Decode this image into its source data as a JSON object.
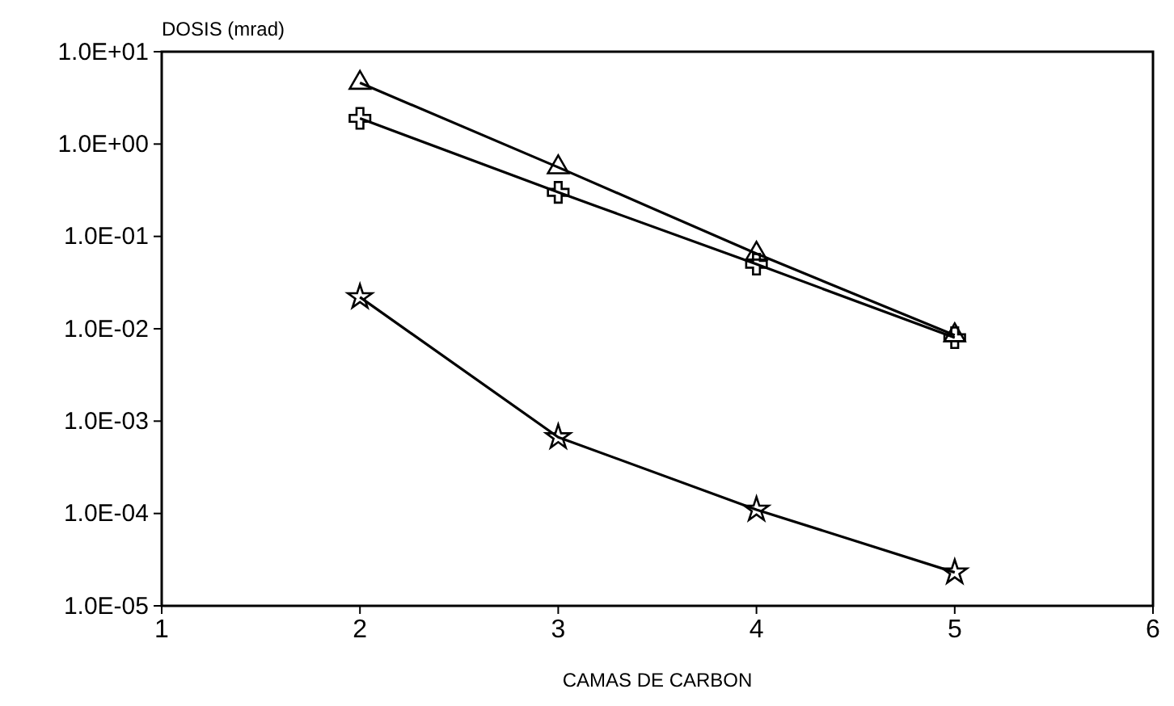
{
  "chart_data": {
    "type": "line",
    "ylabel": "DOSIS (mrad)",
    "xlabel": "CAMAS DE CARBON",
    "log": "y",
    "xlim": [
      1,
      6
    ],
    "xticks": [
      1,
      2,
      3,
      4,
      5,
      6
    ],
    "ylim": [
      1e-05,
      10
    ],
    "yticks": [
      {
        "value": 10,
        "label": "1.0E+01"
      },
      {
        "value": 1,
        "label": "1.0E+00"
      },
      {
        "value": 0.1,
        "label": "1.0E-01"
      },
      {
        "value": 0.01,
        "label": "1.0E-02"
      },
      {
        "value": 0.001,
        "label": "1.0E-03"
      },
      {
        "value": 0.0001,
        "label": "1.0E-04"
      },
      {
        "value": 1e-05,
        "label": "1.0E-05"
      }
    ],
    "grid": false,
    "line_style": "solid",
    "series": [
      {
        "x": [
          2,
          3,
          4,
          5
        ],
        "values": [
          4.6,
          0.56,
          0.065,
          0.0085
        ],
        "color": "#000000",
        "marker": "triangle"
      },
      {
        "x": [
          2,
          3,
          4,
          5
        ],
        "values": [
          1.9,
          0.3,
          0.05,
          0.008
        ],
        "color": "#000000",
        "marker": "cross"
      },
      {
        "x": [
          2,
          3,
          4,
          5
        ],
        "values": [
          0.022,
          0.00067,
          0.00011,
          2.3e-05
        ],
        "color": "#000000",
        "marker": "star"
      }
    ]
  }
}
